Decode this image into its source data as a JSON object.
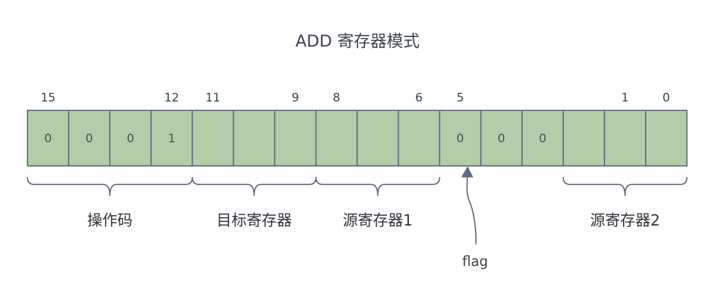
{
  "title": "ADD 寄存器模式",
  "bit_numbers": [
    {
      "text": "15",
      "bit": 15
    },
    {
      "text": "12",
      "bit": 12
    },
    {
      "text": "11",
      "bit": 11
    },
    {
      "text": "9",
      "bit": 9
    },
    {
      "text": "8",
      "bit": 8
    },
    {
      "text": "6",
      "bit": 6
    },
    {
      "text": "5",
      "bit": 5
    },
    {
      "text": "1",
      "bit": 1
    },
    {
      "text": "0",
      "bit": 0
    }
  ],
  "cells": [
    "0",
    "0",
    "0",
    "1",
    "",
    "",
    "",
    "",
    "",
    "",
    "0",
    "0",
    "0",
    "",
    "",
    ""
  ],
  "fields": [
    {
      "label": "操作码",
      "from_bit": 15,
      "to_bit": 12
    },
    {
      "label": "目标寄存器",
      "from_bit": 11,
      "to_bit": 9
    },
    {
      "label": "源寄存器1",
      "from_bit": 8,
      "to_bit": 6
    },
    {
      "label": "源寄存器2",
      "from_bit": 2,
      "to_bit": 0
    }
  ],
  "pointer": {
    "label": "flag",
    "bit": 5
  },
  "colors": {
    "cell_fill": "#b3cda9",
    "stroke": "#5f6a7a",
    "text": "#3b3f46"
  }
}
